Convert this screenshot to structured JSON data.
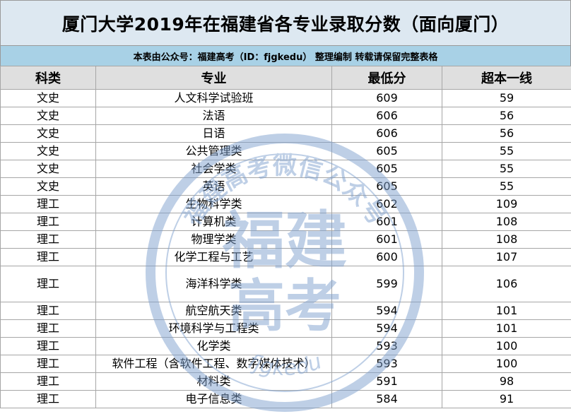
{
  "title": "厦门大学2019年在福建省各专业录取分数（面向厦门）",
  "subtitle": "本表由公众号：福建高考（ID：fjgkedu） 整理编制 转载请保留完整表格",
  "table": {
    "headers": [
      "科类",
      "专业",
      "最低分",
      "超本一线"
    ],
    "rows": [
      [
        "文史",
        "人文科学试验班",
        "609",
        "59"
      ],
      [
        "文史",
        "法语",
        "606",
        "56"
      ],
      [
        "文史",
        "日语",
        "606",
        "56"
      ],
      [
        "文史",
        "公共管理类",
        "605",
        "55"
      ],
      [
        "文史",
        "社会学类",
        "605",
        "55"
      ],
      [
        "文史",
        "英语",
        "605",
        "55"
      ],
      [
        "理工",
        "生物科学类",
        "602",
        "109"
      ],
      [
        "理工",
        "计算机类",
        "601",
        "108"
      ],
      [
        "理工",
        "物理学类",
        "601",
        "108"
      ],
      [
        "理工",
        "化学工程与工艺",
        "600",
        "107"
      ],
      [
        "理工",
        "海洋科学类",
        "599",
        "106"
      ],
      [
        "理工",
        "航空航天类",
        "594",
        "101"
      ],
      [
        "理工",
        "环境科学与工程类",
        "594",
        "101"
      ],
      [
        "理工",
        "化学类",
        "593",
        "100"
      ],
      [
        "理工",
        "软件工程（含软件工程、数字媒体技术）",
        "593",
        "100"
      ],
      [
        "理工",
        "材料类",
        "591",
        "98"
      ],
      [
        "理工",
        "电子信息类",
        "584",
        "91"
      ]
    ]
  },
  "watermark": {
    "main_text": "福建",
    "sub_text": "高考",
    "ring_text": "福建高考微信公众号",
    "id_text": "fjgkedu",
    "color": "#7fa1cf"
  }
}
